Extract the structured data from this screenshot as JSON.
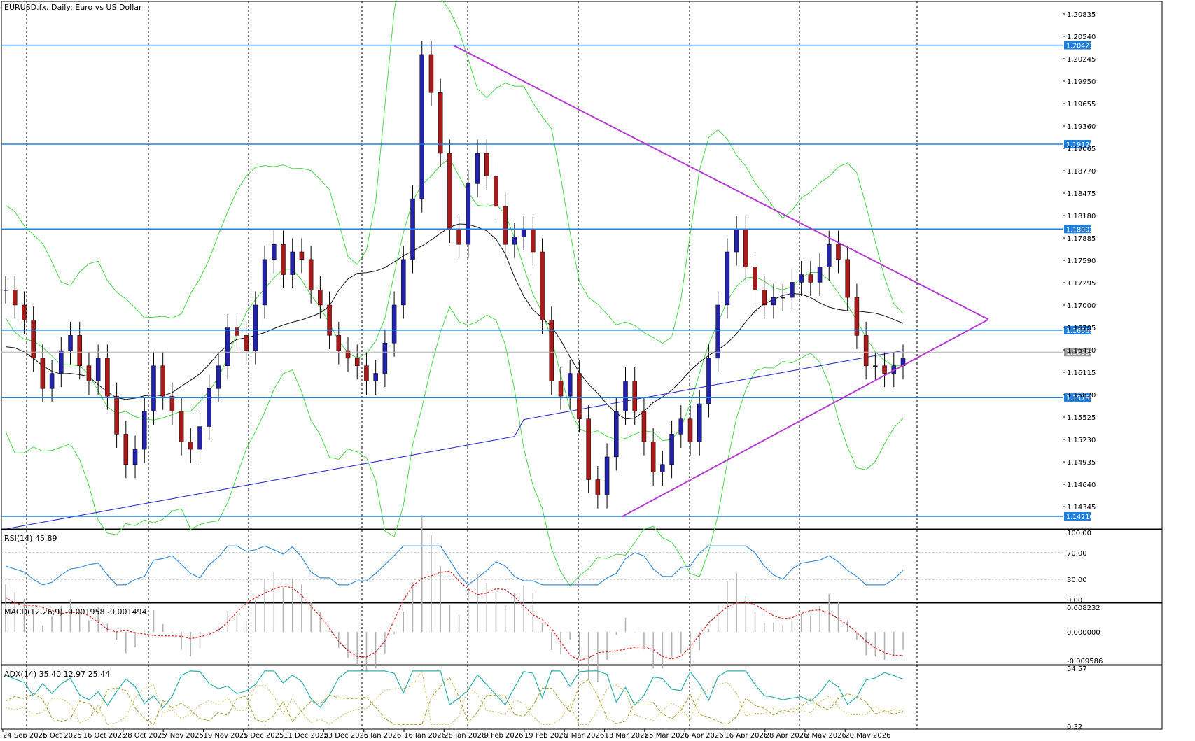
{
  "chart_data": [
    {
      "type": "candlestick",
      "title": "EURUSD.fx, Daily:  Euro vs US Dollar",
      "symbol": "EURUSD.fx",
      "timeframe": "Daily",
      "ylim": [
        1.1405,
        1.21
      ],
      "y_ticks": [
        "1.20835",
        "1.20540",
        "1.20245",
        "1.19950",
        "1.19655",
        "1.19360",
        "1.19065",
        "1.18770",
        "1.18475",
        "1.18180",
        "1.17885",
        "1.17590",
        "1.17295",
        "1.17000",
        "1.16705",
        "1.16410",
        "1.16115",
        "1.15820",
        "1.15525",
        "1.15230",
        "1.14935",
        "1.14640",
        "1.14345"
      ],
      "x_tick_labels": [
        "24 Sep 2025",
        "6 Oct 2025",
        "16 Oct 2025",
        "28 Oct 2025",
        "7 Nov 2025",
        "19 Nov 2025",
        "1 Dec 2025",
        "11 Dec 2025",
        "23 Dec 2025",
        "6 Jan 2026",
        "16 Jan 2026",
        "28 Jan 2026",
        "9 Feb 2026",
        "19 Feb 2026",
        "3 Mar 2026",
        "13 Mar 2026",
        "25 Mar 2026",
        "6 Apr 2026",
        "16 Apr 2026",
        "28 Apr 2026",
        "8 May 2026",
        "20 May 2026"
      ],
      "vertical_grid_dates": [
        "1 Oct 2025",
        "3 Nov 2025",
        "1 Dec 2025",
        "1 Jan 2026",
        "2 Feb 2026",
        "2 Mar 2026",
        "1 Apr 2026",
        "1 May 2026",
        "1 Jun 2026"
      ],
      "horizontal_levels": [
        {
          "label": "1.20423",
          "value": 1.20423
        },
        {
          "label": "1.19120",
          "value": 1.1912
        },
        {
          "label": "1.18002",
          "value": 1.18002
        },
        {
          "label": "1.16669",
          "value": 1.16669
        },
        {
          "label": "1.15781",
          "value": 1.15781
        },
        {
          "label": "1.14216",
          "value": 1.14216
        }
      ],
      "current_price": {
        "label": "1.16380",
        "value": 1.1638
      },
      "trendlines": [
        {
          "name": "upper",
          "from": [
            11,
            1.2042
          ],
          "to": [
            15,
            1.1681
          ]
        },
        {
          "name": "lower",
          "from": [
            8,
            1.1421
          ],
          "to": [
            15,
            1.1681
          ]
        }
      ],
      "candles_close_path": [
        1.172,
        1.17,
        1.168,
        1.163,
        1.159,
        1.161,
        1.164,
        1.166,
        1.162,
        1.16,
        1.163,
        1.158,
        1.153,
        1.149,
        1.151,
        1.156,
        1.162,
        1.158,
        1.156,
        1.152,
        1.151,
        1.154,
        1.159,
        1.162,
        1.167,
        1.166,
        1.164,
        1.17,
        1.176,
        1.178,
        1.174,
        1.177,
        1.176,
        1.172,
        1.17,
        1.166,
        1.164,
        1.163,
        1.162,
        1.16,
        1.161,
        1.165,
        1.17,
        1.176,
        1.184,
        1.203,
        1.198,
        1.19,
        1.18,
        1.178,
        1.186,
        1.19,
        1.187,
        1.183,
        1.178,
        1.179,
        1.18,
        1.177,
        1.168,
        1.16,
        1.158,
        1.161,
        1.155,
        1.147,
        1.145,
        1.15,
        1.156,
        1.16,
        1.156,
        1.152,
        1.148,
        1.149,
        1.153,
        1.155,
        1.152,
        1.157,
        1.163,
        1.17,
        1.177,
        1.18,
        1.175,
        1.172,
        1.17,
        1.171,
        1.171,
        1.173,
        1.174,
        1.173,
        1.175,
        1.178,
        1.176,
        1.171,
        1.166,
        1.162,
        1.162,
        1.161,
        1.162,
        1.163
      ],
      "indicators": [
        "MA 50 (black)",
        "MA 200 (blue)",
        "Bollinger Bands (green)"
      ]
    },
    {
      "type": "line",
      "title": "RSI(14) 45.89",
      "y_ticks": [
        "100.00",
        "70.00",
        "30.00",
        "0.00"
      ],
      "ylim": [
        0,
        100
      ]
    },
    {
      "type": "bar",
      "title": "MACD(12,26,9) -0.001958 -0.001494",
      "y_ticks": [
        "0.008232",
        "0.000000",
        "-0.009586"
      ],
      "ylim": [
        -0.009586,
        0.008232
      ]
    },
    {
      "type": "line",
      "title": "ADX(14) 35.40 12.97 25.44",
      "y_ticks": [
        "54.57",
        "0.32"
      ],
      "ylim": [
        0.32,
        54.57
      ]
    }
  ],
  "colors": {
    "level_line": "#1e7fe0",
    "level_label_bg": "#1e7fe0",
    "current_label_bg": "#9a9a9a",
    "bull_candle": "#2222aa",
    "bear_candle": "#aa1a1a",
    "ma_fast": "#111111",
    "ma_slow": "#2222cc",
    "bollinger": "#4ad84a",
    "trendline": "#b43cd0",
    "rsi": "#3a8fd8",
    "macd_signal": "#e02020",
    "macd_hist": "#b0b0b0",
    "adx": "#30b0b0",
    "di_plus": "#c8c060",
    "di_minus": "#a0a030"
  }
}
